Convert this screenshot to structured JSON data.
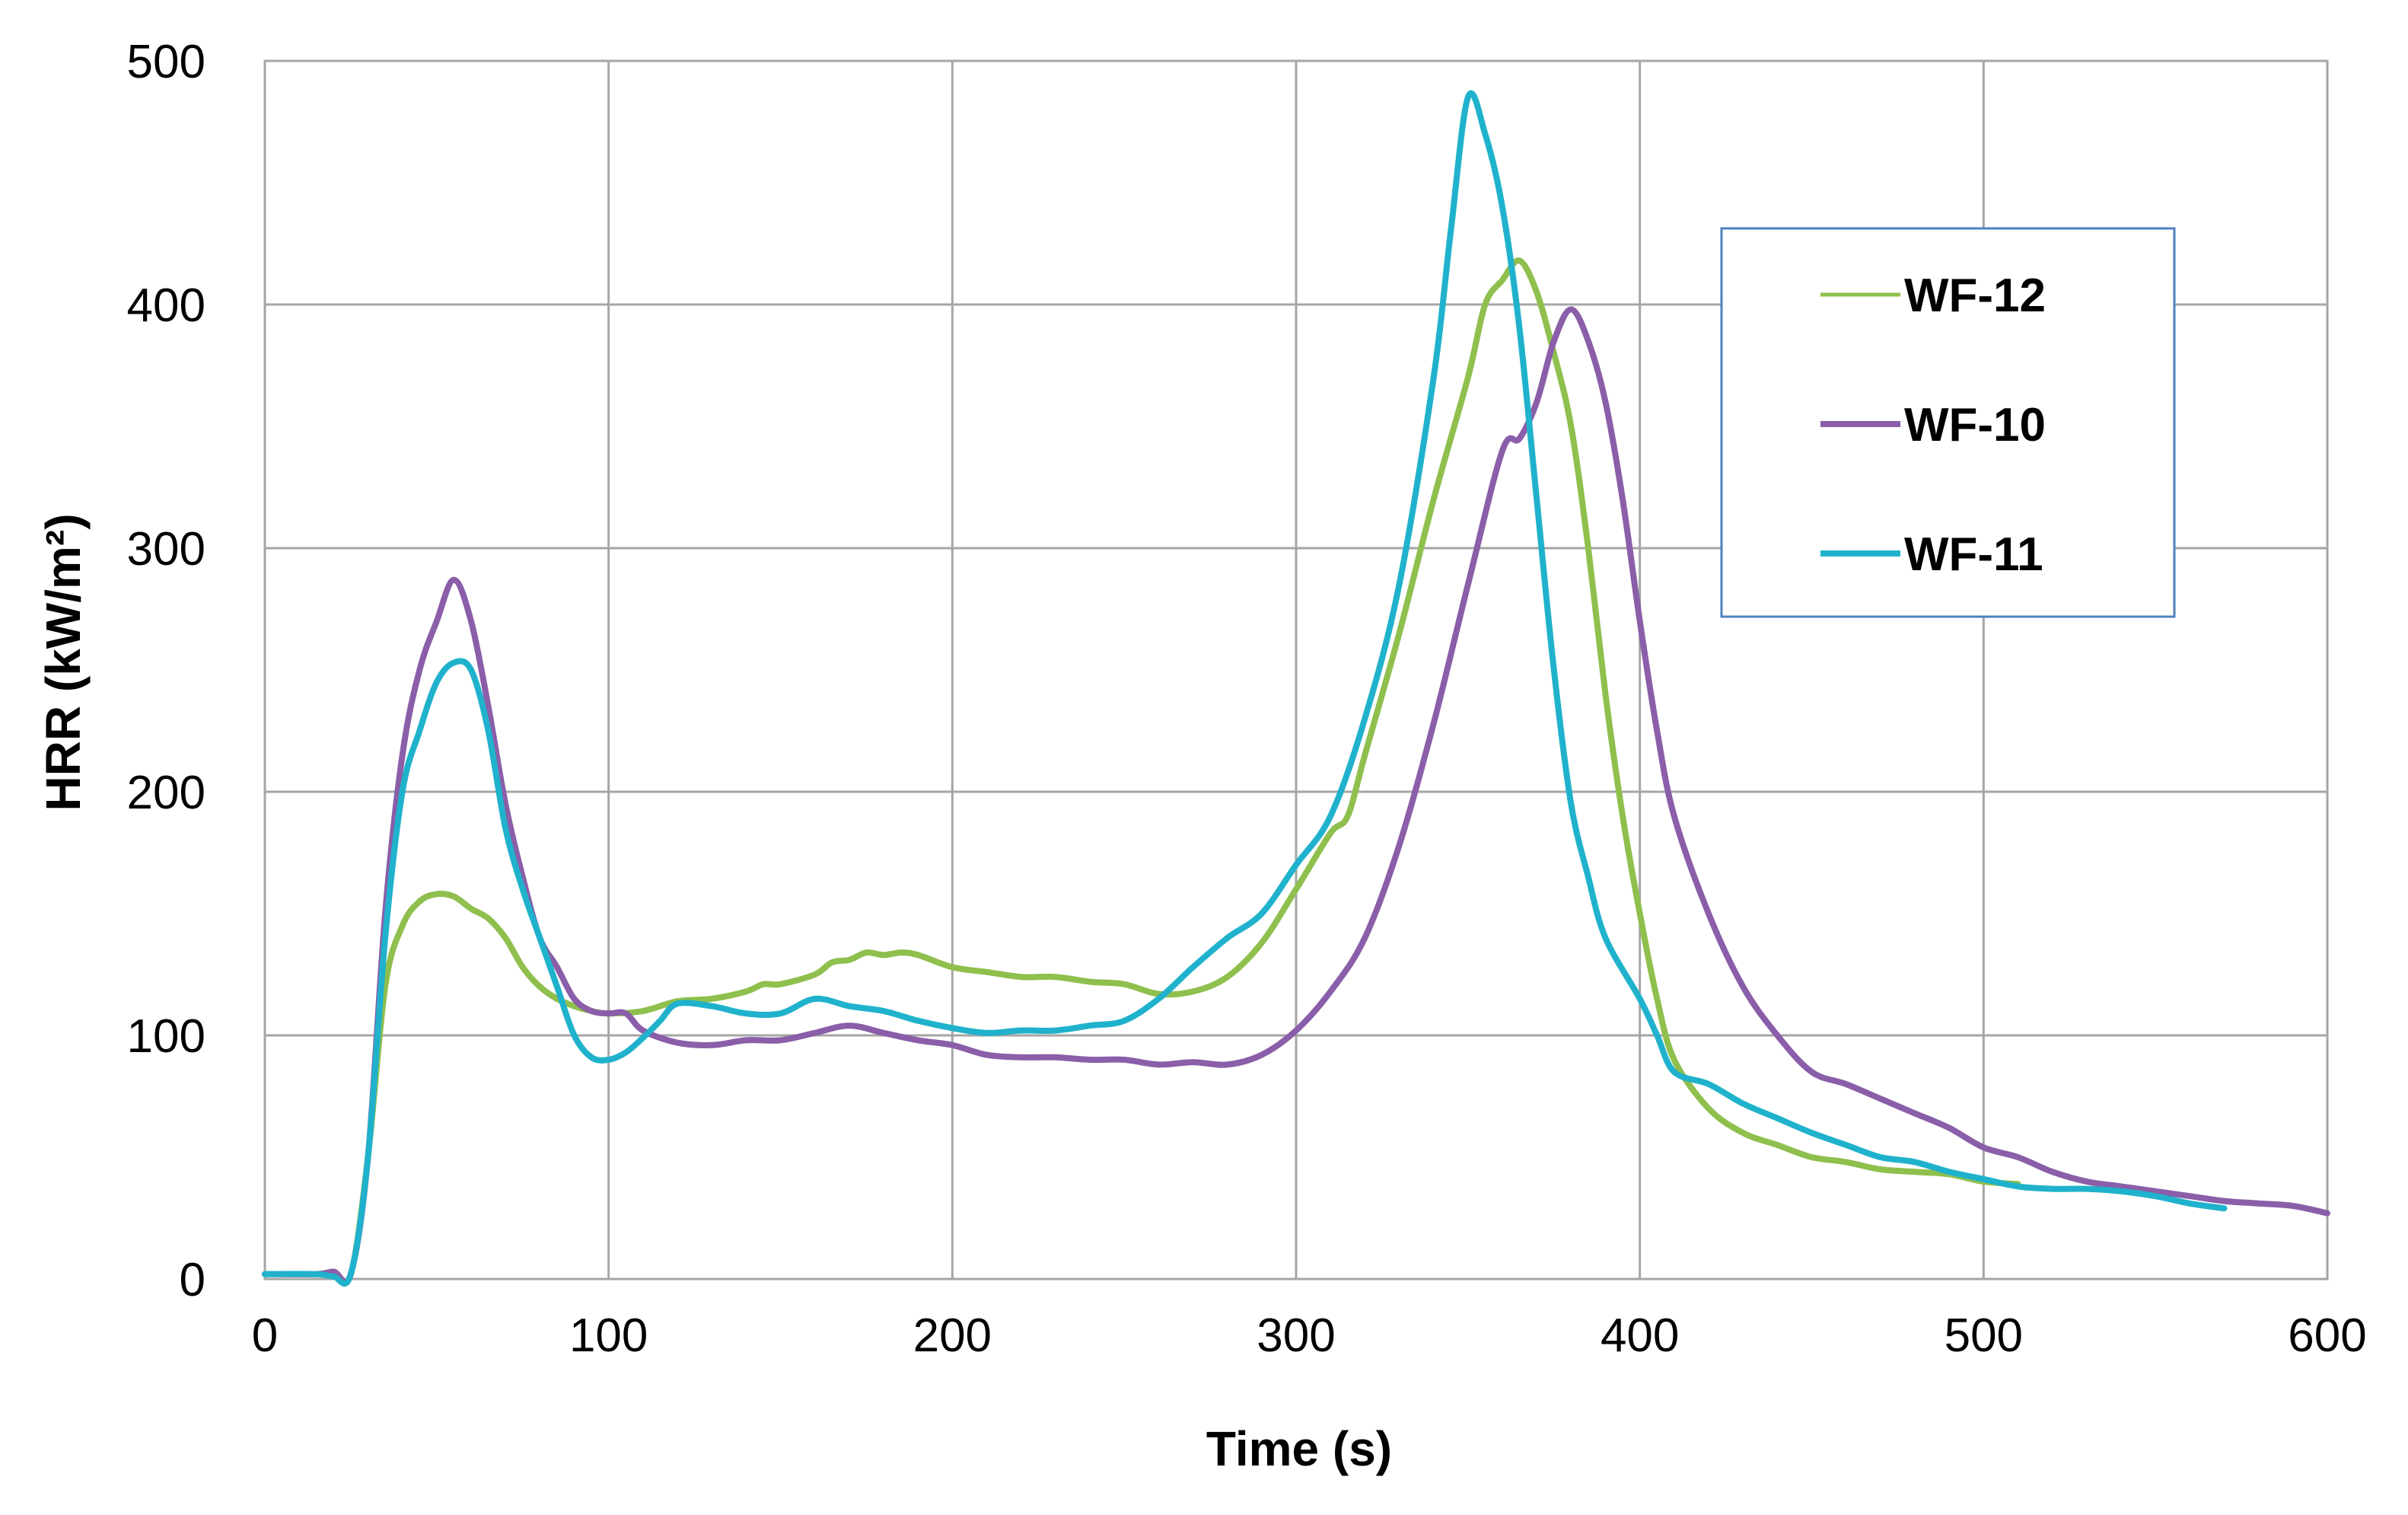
{
  "chart_data": {
    "type": "line",
    "title": "",
    "xlabel": "Time (s)",
    "ylabel": "HRR (kW/m²)",
    "xlim": [
      0,
      600
    ],
    "ylim": [
      0,
      500
    ],
    "xticks": [
      0,
      100,
      200,
      300,
      400,
      500,
      600
    ],
    "yticks": [
      0,
      100,
      200,
      300,
      400,
      500
    ],
    "grid": true,
    "legend_position": "top-right",
    "series": [
      {
        "name": "WF-12",
        "color": "#8fbf4d",
        "points": [
          [
            0,
            2
          ],
          [
            15,
            2
          ],
          [
            20,
            3
          ],
          [
            25,
            2
          ],
          [
            30,
            50
          ],
          [
            35,
            120
          ],
          [
            40,
            145
          ],
          [
            45,
            155
          ],
          [
            50,
            158
          ],
          [
            55,
            157
          ],
          [
            60,
            152
          ],
          [
            65,
            148
          ],
          [
            70,
            140
          ],
          [
            75,
            128
          ],
          [
            80,
            120
          ],
          [
            85,
            115
          ],
          [
            90,
            112
          ],
          [
            95,
            110
          ],
          [
            100,
            109
          ],
          [
            110,
            110
          ],
          [
            120,
            114
          ],
          [
            130,
            115
          ],
          [
            140,
            118
          ],
          [
            145,
            121
          ],
          [
            150,
            121
          ],
          [
            160,
            125
          ],
          [
            165,
            130
          ],
          [
            170,
            131
          ],
          [
            175,
            134
          ],
          [
            180,
            133
          ],
          [
            185,
            134
          ],
          [
            190,
            133
          ],
          [
            200,
            128
          ],
          [
            210,
            126
          ],
          [
            220,
            124
          ],
          [
            230,
            124
          ],
          [
            240,
            122
          ],
          [
            250,
            121
          ],
          [
            260,
            117
          ],
          [
            270,
            118
          ],
          [
            280,
            124
          ],
          [
            290,
            138
          ],
          [
            300,
            160
          ],
          [
            310,
            183
          ],
          [
            315,
            190
          ],
          [
            320,
            215
          ],
          [
            330,
            265
          ],
          [
            340,
            320
          ],
          [
            350,
            370
          ],
          [
            355,
            400
          ],
          [
            360,
            410
          ],
          [
            365,
            418
          ],
          [
            370,
            405
          ],
          [
            375,
            380
          ],
          [
            380,
            350
          ],
          [
            385,
            300
          ],
          [
            390,
            240
          ],
          [
            395,
            190
          ],
          [
            400,
            150
          ],
          [
            405,
            115
          ],
          [
            410,
            90
          ],
          [
            420,
            70
          ],
          [
            430,
            60
          ],
          [
            440,
            55
          ],
          [
            450,
            50
          ],
          [
            460,
            48
          ],
          [
            470,
            45
          ],
          [
            480,
            44
          ],
          [
            490,
            43
          ],
          [
            500,
            40
          ],
          [
            510,
            39
          ]
        ]
      },
      {
        "name": "WF-10",
        "color": "#8a5ea8",
        "points": [
          [
            0,
            2
          ],
          [
            15,
            2
          ],
          [
            20,
            3
          ],
          [
            25,
            2
          ],
          [
            30,
            50
          ],
          [
            35,
            150
          ],
          [
            40,
            215
          ],
          [
            45,
            250
          ],
          [
            50,
            270
          ],
          [
            55,
            287
          ],
          [
            60,
            270
          ],
          [
            65,
            235
          ],
          [
            70,
            195
          ],
          [
            75,
            165
          ],
          [
            80,
            140
          ],
          [
            85,
            128
          ],
          [
            90,
            115
          ],
          [
            95,
            110
          ],
          [
            100,
            109
          ],
          [
            105,
            109
          ],
          [
            110,
            102
          ],
          [
            120,
            97
          ],
          [
            130,
            96
          ],
          [
            140,
            98
          ],
          [
            150,
            98
          ],
          [
            160,
            101
          ],
          [
            170,
            104
          ],
          [
            180,
            101
          ],
          [
            190,
            98
          ],
          [
            200,
            96
          ],
          [
            210,
            92
          ],
          [
            220,
            91
          ],
          [
            230,
            91
          ],
          [
            240,
            90
          ],
          [
            250,
            90
          ],
          [
            260,
            88
          ],
          [
            270,
            89
          ],
          [
            280,
            88
          ],
          [
            290,
            92
          ],
          [
            300,
            102
          ],
          [
            310,
            118
          ],
          [
            320,
            140
          ],
          [
            330,
            178
          ],
          [
            340,
            228
          ],
          [
            350,
            285
          ],
          [
            360,
            340
          ],
          [
            365,
            345
          ],
          [
            370,
            360
          ],
          [
            375,
            385
          ],
          [
            380,
            398
          ],
          [
            385,
            385
          ],
          [
            390,
            360
          ],
          [
            395,
            320
          ],
          [
            400,
            270
          ],
          [
            405,
            225
          ],
          [
            410,
            190
          ],
          [
            420,
            150
          ],
          [
            430,
            120
          ],
          [
            440,
            100
          ],
          [
            450,
            85
          ],
          [
            460,
            80
          ],
          [
            470,
            74
          ],
          [
            480,
            68
          ],
          [
            490,
            62
          ],
          [
            500,
            54
          ],
          [
            510,
            50
          ],
          [
            520,
            44
          ],
          [
            530,
            40
          ],
          [
            540,
            38
          ],
          [
            550,
            36
          ],
          [
            560,
            34
          ],
          [
            570,
            32
          ],
          [
            580,
            31
          ],
          [
            590,
            30
          ],
          [
            600,
            27
          ]
        ]
      },
      {
        "name": "WF-11",
        "color": "#20b2cc",
        "points": [
          [
            0,
            2
          ],
          [
            15,
            2
          ],
          [
            20,
            1
          ],
          [
            25,
            2
          ],
          [
            30,
            50
          ],
          [
            35,
            140
          ],
          [
            40,
            200
          ],
          [
            45,
            225
          ],
          [
            50,
            245
          ],
          [
            55,
            253
          ],
          [
            60,
            250
          ],
          [
            65,
            225
          ],
          [
            70,
            185
          ],
          [
            75,
            160
          ],
          [
            80,
            140
          ],
          [
            85,
            120
          ],
          [
            90,
            100
          ],
          [
            95,
            91
          ],
          [
            100,
            90
          ],
          [
            105,
            93
          ],
          [
            110,
            99
          ],
          [
            115,
            106
          ],
          [
            120,
            113
          ],
          [
            130,
            112
          ],
          [
            140,
            109
          ],
          [
            150,
            109
          ],
          [
            160,
            115
          ],
          [
            170,
            112
          ],
          [
            180,
            110
          ],
          [
            190,
            106
          ],
          [
            200,
            103
          ],
          [
            210,
            101
          ],
          [
            220,
            102
          ],
          [
            230,
            102
          ],
          [
            240,
            104
          ],
          [
            250,
            106
          ],
          [
            260,
            115
          ],
          [
            270,
            128
          ],
          [
            280,
            140
          ],
          [
            290,
            150
          ],
          [
            300,
            170
          ],
          [
            310,
            190
          ],
          [
            320,
            230
          ],
          [
            330,
            285
          ],
          [
            340,
            370
          ],
          [
            345,
            430
          ],
          [
            350,
            485
          ],
          [
            355,
            470
          ],
          [
            360,
            440
          ],
          [
            365,
            390
          ],
          [
            370,
            320
          ],
          [
            375,
            250
          ],
          [
            380,
            195
          ],
          [
            385,
            165
          ],
          [
            390,
            140
          ],
          [
            400,
            115
          ],
          [
            405,
            100
          ],
          [
            410,
            85
          ],
          [
            420,
            80
          ],
          [
            430,
            72
          ],
          [
            440,
            66
          ],
          [
            450,
            60
          ],
          [
            460,
            55
          ],
          [
            470,
            50
          ],
          [
            480,
            48
          ],
          [
            490,
            44
          ],
          [
            500,
            41
          ],
          [
            510,
            38
          ],
          [
            520,
            37
          ],
          [
            530,
            37
          ],
          [
            540,
            36
          ],
          [
            550,
            34
          ],
          [
            560,
            31
          ],
          [
            570,
            29
          ]
        ]
      }
    ]
  }
}
